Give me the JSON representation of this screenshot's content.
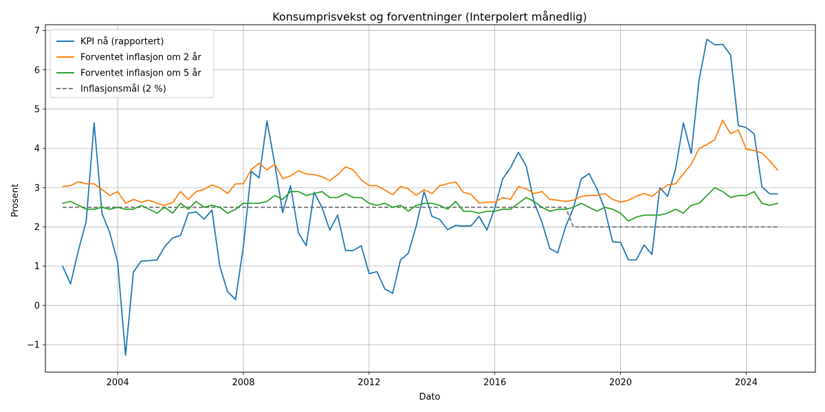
{
  "chart_data": {
    "type": "line",
    "title": "Konsumprisvekst og forventninger (Interpolert månedlig)",
    "xlabel": "Dato",
    "ylabel": "Prosent",
    "xlim": [
      2001.7,
      2026.2
    ],
    "ylim": [
      -1.7,
      7.15
    ],
    "xticks": [
      2004,
      2008,
      2012,
      2016,
      2020,
      2024
    ],
    "xtick_labels": [
      "2004",
      "2008",
      "2012",
      "2016",
      "2020",
      "2024"
    ],
    "yticks": [
      -1,
      0,
      1,
      2,
      3,
      4,
      5,
      6,
      7
    ],
    "ytick_labels": [
      "−1",
      "0",
      "1",
      "2",
      "3",
      "4",
      "5",
      "6",
      "7"
    ],
    "grid": true,
    "legend_position": "top-left",
    "x": [
      2002.25,
      2002.5,
      2002.75,
      2003.0,
      2003.25,
      2003.5,
      2003.75,
      2004.0,
      2004.25,
      2004.5,
      2004.75,
      2005.0,
      2005.25,
      2005.5,
      2005.75,
      2006.0,
      2006.25,
      2006.5,
      2006.75,
      2007.0,
      2007.25,
      2007.5,
      2007.75,
      2008.0,
      2008.25,
      2008.5,
      2008.75,
      2009.0,
      2009.25,
      2009.5,
      2009.75,
      2010.0,
      2010.25,
      2010.5,
      2010.75,
      2011.0,
      2011.25,
      2011.5,
      2011.75,
      2012.0,
      2012.25,
      2012.5,
      2012.75,
      2013.0,
      2013.25,
      2013.5,
      2013.75,
      2014.0,
      2014.25,
      2014.5,
      2014.75,
      2015.0,
      2015.25,
      2015.5,
      2015.75,
      2016.0,
      2016.25,
      2016.5,
      2016.75,
      2017.0,
      2017.25,
      2017.5,
      2017.75,
      2018.0,
      2018.25,
      2018.5,
      2018.75,
      2019.0,
      2019.25,
      2019.5,
      2019.75,
      2020.0,
      2020.25,
      2020.5,
      2020.75,
      2021.0,
      2021.25,
      2021.5,
      2021.75,
      2022.0,
      2022.25,
      2022.5,
      2022.75,
      2023.0,
      2023.25,
      2023.5,
      2023.75,
      2024.0,
      2024.25,
      2024.5,
      2024.75,
      2025.0
    ],
    "series": [
      {
        "name": "KPI nå (rapportert)",
        "color": "#1f77b4",
        "style": "solid",
        "values": [
          1.0,
          0.55,
          1.4,
          2.15,
          4.65,
          2.35,
          1.85,
          1.1,
          -1.27,
          0.85,
          1.13,
          1.14,
          1.16,
          1.5,
          1.72,
          1.78,
          2.35,
          2.38,
          2.2,
          2.43,
          1.0,
          0.35,
          0.15,
          1.5,
          3.42,
          3.25,
          4.7,
          3.6,
          2.37,
          3.05,
          1.85,
          1.52,
          2.88,
          2.5,
          1.92,
          2.3,
          1.4,
          1.4,
          1.52,
          0.81,
          0.86,
          0.42,
          0.31,
          1.16,
          1.33,
          2.02,
          2.9,
          2.27,
          2.19,
          1.93,
          2.04,
          2.02,
          2.03,
          2.27,
          1.92,
          2.48,
          3.22,
          3.51,
          3.9,
          3.55,
          2.62,
          2.12,
          1.45,
          1.34,
          2.0,
          2.48,
          3.22,
          3.36,
          2.97,
          2.45,
          1.62,
          1.61,
          1.16,
          1.16,
          1.54,
          1.3,
          3.0,
          2.78,
          3.47,
          4.65,
          3.87,
          5.75,
          6.78,
          6.64,
          6.65,
          6.38,
          4.58,
          4.53,
          4.37,
          3.02,
          2.84,
          2.84
        ]
      },
      {
        "name": "Forventet inflasjon om 2 år",
        "color": "#ff7f0e",
        "style": "solid",
        "values": [
          3.03,
          3.05,
          3.15,
          3.1,
          3.1,
          2.95,
          2.8,
          2.9,
          2.6,
          2.7,
          2.63,
          2.68,
          2.6,
          2.55,
          2.62,
          2.9,
          2.7,
          2.9,
          2.96,
          3.07,
          3.0,
          2.85,
          3.1,
          3.1,
          3.46,
          3.62,
          3.45,
          3.6,
          3.23,
          3.3,
          3.43,
          3.35,
          3.33,
          3.28,
          3.18,
          3.33,
          3.53,
          3.45,
          3.2,
          3.05,
          3.05,
          2.94,
          2.82,
          3.03,
          2.97,
          2.8,
          2.95,
          2.85,
          3.05,
          3.1,
          3.15,
          2.88,
          2.83,
          2.6,
          2.63,
          2.63,
          2.75,
          2.7,
          3.03,
          2.97,
          2.85,
          2.9,
          2.7,
          2.68,
          2.65,
          2.68,
          2.78,
          2.8,
          2.8,
          2.85,
          2.7,
          2.63,
          2.68,
          2.78,
          2.85,
          2.78,
          2.93,
          3.07,
          3.1,
          3.35,
          3.6,
          4.0,
          4.1,
          4.22,
          4.72,
          4.37,
          4.47,
          3.98,
          3.95,
          3.88,
          3.68,
          3.45
        ]
      },
      {
        "name": "Forventet inflasjon om 5 år",
        "color": "#2ca02c",
        "style": "solid",
        "values": [
          2.6,
          2.65,
          2.55,
          2.45,
          2.45,
          2.5,
          2.45,
          2.5,
          2.45,
          2.45,
          2.55,
          2.45,
          2.35,
          2.5,
          2.35,
          2.6,
          2.45,
          2.65,
          2.5,
          2.55,
          2.5,
          2.35,
          2.45,
          2.6,
          2.6,
          2.6,
          2.65,
          2.8,
          2.7,
          2.9,
          2.9,
          2.8,
          2.85,
          2.9,
          2.75,
          2.75,
          2.85,
          2.75,
          2.75,
          2.6,
          2.55,
          2.6,
          2.5,
          2.55,
          2.4,
          2.55,
          2.6,
          2.6,
          2.55,
          2.45,
          2.65,
          2.4,
          2.4,
          2.35,
          2.4,
          2.4,
          2.45,
          2.45,
          2.6,
          2.75,
          2.65,
          2.5,
          2.4,
          2.45,
          2.45,
          2.5,
          2.6,
          2.5,
          2.4,
          2.5,
          2.45,
          2.35,
          2.15,
          2.25,
          2.3,
          2.3,
          2.3,
          2.35,
          2.45,
          2.35,
          2.55,
          2.6,
          2.8,
          3.0,
          2.9,
          2.75,
          2.8,
          2.8,
          2.9,
          2.6,
          2.55,
          2.6
        ]
      },
      {
        "name": "Inflasjonsmål (2 %)",
        "color": "#7f7f7f",
        "style": "dashed",
        "values": [
          2.5,
          2.5,
          2.5,
          2.5,
          2.5,
          2.5,
          2.5,
          2.5,
          2.5,
          2.5,
          2.5,
          2.5,
          2.5,
          2.5,
          2.5,
          2.5,
          2.5,
          2.5,
          2.5,
          2.5,
          2.5,
          2.5,
          2.5,
          2.5,
          2.5,
          2.5,
          2.5,
          2.5,
          2.5,
          2.5,
          2.5,
          2.5,
          2.5,
          2.5,
          2.5,
          2.5,
          2.5,
          2.5,
          2.5,
          2.5,
          2.5,
          2.5,
          2.5,
          2.5,
          2.5,
          2.5,
          2.5,
          2.5,
          2.5,
          2.5,
          2.5,
          2.5,
          2.5,
          2.5,
          2.5,
          2.5,
          2.5,
          2.5,
          2.5,
          2.5,
          2.5,
          2.5,
          2.5,
          2.5,
          2.5,
          2.0,
          2.0,
          2.0,
          2.0,
          2.0,
          2.0,
          2.0,
          2.0,
          2.0,
          2.0,
          2.0,
          2.0,
          2.0,
          2.0,
          2.0,
          2.0,
          2.0,
          2.0,
          2.0,
          2.0,
          2.0,
          2.0,
          2.0,
          2.0,
          2.0,
          2.0,
          2.0
        ]
      }
    ]
  }
}
